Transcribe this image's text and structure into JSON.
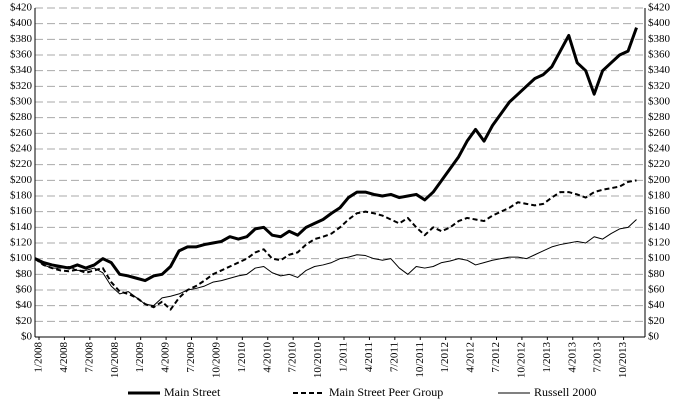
{
  "chart_data": {
    "type": "line",
    "categories": [
      "1/2008",
      null,
      null,
      "4/2008",
      null,
      null,
      "7/2008",
      null,
      null,
      "10/2008",
      null,
      null,
      "1/2009",
      null,
      null,
      "4/2009",
      null,
      null,
      "7/2009",
      null,
      null,
      "10/2009",
      null,
      null,
      "1/2010",
      null,
      null,
      "4/2010",
      null,
      null,
      "7/2010",
      null,
      null,
      "10/2010",
      null,
      null,
      "1/2011",
      null,
      null,
      "4/2011",
      null,
      null,
      "7/2011",
      null,
      null,
      "10/2011",
      null,
      null,
      "1/2012",
      null,
      null,
      "4/2012",
      null,
      null,
      "7/2012",
      null,
      null,
      "10/2012",
      null,
      null,
      "1/2013",
      null,
      null,
      "4/2013",
      null,
      null,
      "7/2013",
      null,
      null,
      "10/2013",
      null,
      null
    ],
    "series": [
      {
        "name": "Main Street",
        "color": "#000000",
        "width": 3,
        "dash": "none",
        "values": [
          100,
          95,
          92,
          90,
          88,
          92,
          88,
          92,
          100,
          95,
          80,
          78,
          75,
          72,
          78,
          80,
          90,
          110,
          115,
          115,
          118,
          120,
          122,
          128,
          125,
          128,
          138,
          140,
          130,
          128,
          135,
          130,
          140,
          145,
          150,
          158,
          165,
          178,
          185,
          185,
          182,
          180,
          182,
          178,
          180,
          182,
          175,
          185,
          200,
          215,
          230,
          250,
          265,
          250,
          270,
          285,
          300,
          310,
          320,
          330,
          335,
          345,
          365,
          385,
          350,
          340,
          310,
          340,
          350,
          360,
          365,
          395
        ]
      },
      {
        "name": "Main Street Peer Group",
        "color": "#000000",
        "width": 2,
        "dash": "5,3",
        "values": [
          100,
          92,
          88,
          85,
          84,
          86,
          82,
          85,
          88,
          70,
          58,
          55,
          50,
          42,
          38,
          45,
          35,
          50,
          60,
          65,
          72,
          80,
          85,
          90,
          95,
          100,
          108,
          112,
          100,
          98,
          105,
          108,
          118,
          125,
          128,
          132,
          140,
          150,
          158,
          160,
          158,
          155,
          150,
          145,
          152,
          140,
          130,
          140,
          135,
          140,
          148,
          152,
          150,
          148,
          155,
          160,
          165,
          172,
          170,
          168,
          170,
          178,
          185,
          185,
          182,
          178,
          185,
          188,
          190,
          192,
          198,
          200
        ]
      },
      {
        "name": "Russell 2000",
        "color": "#000000",
        "width": 1,
        "dash": "none",
        "values": [
          100,
          92,
          88,
          88,
          90,
          85,
          85,
          88,
          82,
          65,
          55,
          58,
          50,
          42,
          40,
          50,
          52,
          55,
          60,
          62,
          65,
          70,
          72,
          75,
          78,
          80,
          88,
          90,
          82,
          78,
          80,
          76,
          85,
          90,
          92,
          95,
          100,
          102,
          105,
          104,
          100,
          98,
          100,
          88,
          80,
          90,
          88,
          90,
          95,
          97,
          100,
          98,
          92,
          95,
          98,
          100,
          102,
          102,
          100,
          105,
          110,
          115,
          118,
          120,
          122,
          120,
          128,
          125,
          132,
          138,
          140,
          150
        ]
      }
    ],
    "ylim": [
      0,
      420
    ],
    "yticks": [
      {
        "value": 0,
        "label": "$0"
      },
      {
        "value": 20,
        "label": "$20"
      },
      {
        "value": 40,
        "label": "$40"
      },
      {
        "value": 60,
        "label": "$60"
      },
      {
        "value": 80,
        "label": "$80"
      },
      {
        "value": 100,
        "label": "$100"
      },
      {
        "value": 120,
        "label": "$120"
      },
      {
        "value": 140,
        "label": "$140"
      },
      {
        "value": 160,
        "label": "$160"
      },
      {
        "value": 180,
        "label": "$180"
      },
      {
        "value": 200,
        "label": "$200"
      },
      {
        "value": 220,
        "label": "$220"
      },
      {
        "value": 240,
        "label": "$240"
      },
      {
        "value": 260,
        "label": "$260"
      },
      {
        "value": 280,
        "label": "$280"
      },
      {
        "value": 300,
        "label": "$300"
      },
      {
        "value": 320,
        "label": "$320"
      },
      {
        "value": 340,
        "label": "$340"
      },
      {
        "value": 360,
        "label": "$360"
      },
      {
        "value": 380,
        "label": "$380"
      },
      {
        "value": 400,
        "label": "$400"
      },
      {
        "value": 420,
        "label": "$420"
      }
    ],
    "y2lim": [
      0,
      420
    ],
    "y2ticks": [
      {
        "value": 0,
        "label": "$0"
      },
      {
        "value": 20,
        "label": "$20"
      },
      {
        "value": 40,
        "label": "$40"
      },
      {
        "value": 60,
        "label": "$60"
      },
      {
        "value": 80,
        "label": "$80"
      },
      {
        "value": 100,
        "label": "$100"
      },
      {
        "value": 120,
        "label": "$120"
      },
      {
        "value": 140,
        "label": "$140"
      },
      {
        "value": 160,
        "label": "$160"
      },
      {
        "value": 180,
        "label": "$180"
      },
      {
        "value": 200,
        "label": "$200"
      },
      {
        "value": 220,
        "label": "$220"
      },
      {
        "value": 240,
        "label": "$240"
      },
      {
        "value": 260,
        "label": "$260"
      },
      {
        "value": 280,
        "label": "$280"
      },
      {
        "value": 300,
        "label": "$300"
      },
      {
        "value": 320,
        "label": "$320"
      },
      {
        "value": 340,
        "label": "$340"
      },
      {
        "value": 360,
        "label": "$360"
      },
      {
        "value": 380,
        "label": "$380"
      },
      {
        "value": 400,
        "label": "$400"
      },
      {
        "value": 420,
        "label": "$420"
      }
    ],
    "grid": true,
    "legend": "bottom"
  }
}
